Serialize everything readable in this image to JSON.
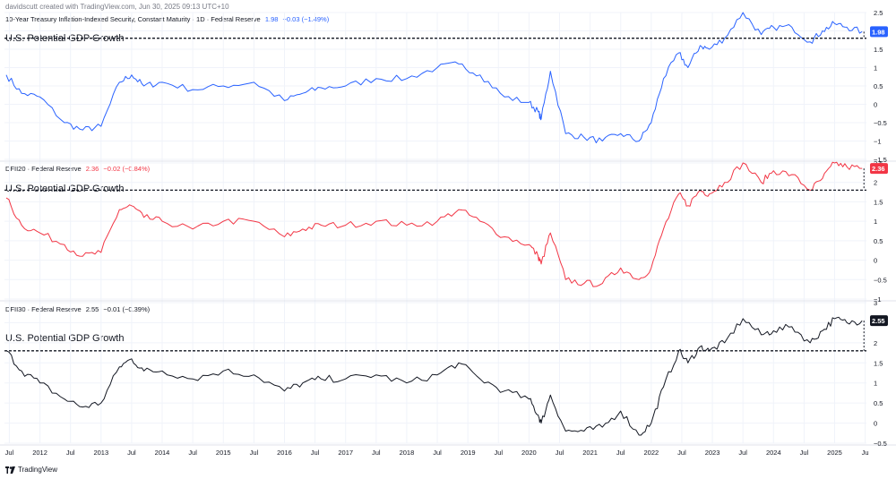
{
  "header": {
    "credit": "davidscutt created with TradingView.com, Jun 30, 2025 09:13 UTC+10"
  },
  "footer": {
    "brand": "TradingView"
  },
  "colors": {
    "blue": "#2962ff",
    "red": "#f23645",
    "black": "#131722",
    "grid": "#f0f3fa",
    "axis_text": "#131722"
  },
  "chart_data": [
    {
      "type": "line",
      "name": "10-Year Treasury Inflation-Indexed Security, Constant Maturity · 1D · Federal Reserve",
      "legend_value": "1.98",
      "legend_change": "−0.03 (−1.49%)",
      "last_value_label": "1.98",
      "color": "#2962ff",
      "annotation": "U.S. Potential GDP Growth",
      "reference_level": 1.8,
      "ylim": [
        -1.5,
        2.5
      ],
      "yticks": [
        "−1.5",
        "−1",
        "−0.5",
        "0",
        "0.5",
        "1",
        "1.5",
        "2",
        "2.5"
      ],
      "x": [
        2011.45,
        2011.7,
        2012.0,
        2012.4,
        2012.7,
        2013.0,
        2013.3,
        2013.5,
        2013.7,
        2014.0,
        2014.5,
        2015.0,
        2015.5,
        2016.0,
        2016.3,
        2016.6,
        2017.0,
        2017.5,
        2018.0,
        2018.5,
        2018.85,
        2019.2,
        2019.6,
        2020.0,
        2020.15,
        2020.2,
        2020.35,
        2020.6,
        2020.9,
        2021.2,
        2021.5,
        2021.8,
        2022.0,
        2022.2,
        2022.45,
        2022.6,
        2022.8,
        2022.95,
        2023.2,
        2023.5,
        2023.8,
        2024.0,
        2024.3,
        2024.6,
        2024.8,
        2025.0,
        2025.2,
        2025.45
      ],
      "y": [
        0.8,
        0.3,
        0.2,
        -0.5,
        -0.7,
        -0.6,
        0.6,
        0.8,
        0.5,
        0.6,
        0.4,
        0.5,
        0.6,
        0.1,
        0.3,
        0.45,
        0.5,
        0.7,
        0.7,
        1.0,
        1.1,
        0.8,
        0.2,
        0.05,
        -0.2,
        -0.4,
        0.9,
        -0.8,
        -0.9,
        -1.0,
        -0.8,
        -1.0,
        -0.5,
        0.7,
        1.4,
        1.0,
        1.6,
        1.5,
        1.8,
        2.5,
        1.9,
        2.1,
        2.1,
        1.7,
        2.0,
        2.2,
        2.1,
        1.98
      ]
    },
    {
      "type": "line",
      "name": "DFII20 · Federal Reserve",
      "legend_value": "2.36",
      "legend_change": "−0.02 (−0.84%)",
      "last_value_label": "2.36",
      "color": "#f23645",
      "annotation": "U.S. Potential GDP Growth",
      "reference_level": 1.8,
      "ylim": [
        -1,
        2.5
      ],
      "yticks": [
        "−1",
        "−0.5",
        "0",
        "0.5",
        "1",
        "1.5",
        "2",
        "2.5"
      ],
      "x": [
        2011.45,
        2011.7,
        2012.0,
        2012.4,
        2012.7,
        2013.0,
        2013.3,
        2013.5,
        2013.7,
        2014.0,
        2014.5,
        2015.0,
        2015.5,
        2016.0,
        2016.3,
        2016.6,
        2017.0,
        2017.5,
        2018.0,
        2018.5,
        2018.85,
        2019.2,
        2019.6,
        2020.0,
        2020.15,
        2020.2,
        2020.35,
        2020.6,
        2020.9,
        2021.2,
        2021.5,
        2021.8,
        2022.0,
        2022.2,
        2022.45,
        2022.6,
        2022.8,
        2022.95,
        2023.2,
        2023.5,
        2023.8,
        2024.0,
        2024.3,
        2024.6,
        2024.8,
        2025.0,
        2025.2,
        2025.45
      ],
      "y": [
        1.6,
        0.9,
        0.7,
        0.4,
        0.1,
        0.2,
        1.3,
        1.4,
        1.1,
        1.0,
        0.8,
        1.0,
        1.0,
        0.6,
        0.8,
        0.9,
        0.9,
        1.0,
        0.9,
        1.0,
        1.3,
        1.0,
        0.6,
        0.4,
        0.1,
        -0.1,
        0.7,
        -0.5,
        -0.6,
        -0.6,
        -0.2,
        -0.5,
        -0.2,
        0.8,
        1.7,
        1.4,
        1.8,
        1.7,
        2.0,
        2.5,
        2.0,
        2.3,
        2.2,
        1.8,
        2.1,
        2.5,
        2.4,
        2.36
      ]
    },
    {
      "type": "line",
      "name": "DFII30 · Federal Reserve",
      "legend_value": "2.55",
      "legend_change": "−0.01 (−0.39%)",
      "last_value_label": "2.55",
      "color": "#131722",
      "annotation": "U.S. Potential GDP Growth",
      "reference_level": 1.8,
      "ylim": [
        -0.5,
        3
      ],
      "yticks": [
        "−0.5",
        "0",
        "0.5",
        "1",
        "1.5",
        "2",
        "2.5",
        "3"
      ],
      "x": [
        2011.45,
        2011.7,
        2012.0,
        2012.4,
        2012.7,
        2013.0,
        2013.3,
        2013.5,
        2013.7,
        2014.0,
        2014.5,
        2015.0,
        2015.5,
        2016.0,
        2016.3,
        2016.6,
        2017.0,
        2017.5,
        2018.0,
        2018.5,
        2018.85,
        2019.2,
        2019.6,
        2020.0,
        2020.15,
        2020.2,
        2020.35,
        2020.6,
        2020.9,
        2021.2,
        2021.5,
        2021.8,
        2022.0,
        2022.2,
        2022.45,
        2022.6,
        2022.8,
        2022.95,
        2023.2,
        2023.5,
        2023.8,
        2024.0,
        2024.3,
        2024.6,
        2024.8,
        2025.0,
        2025.2,
        2025.45
      ],
      "y": [
        1.8,
        1.3,
        1.0,
        0.6,
        0.4,
        0.5,
        1.4,
        1.6,
        1.3,
        1.3,
        1.1,
        1.3,
        1.2,
        0.8,
        1.0,
        1.1,
        1.1,
        1.2,
        1.0,
        1.2,
        1.5,
        1.1,
        0.8,
        0.6,
        0.2,
        0.0,
        0.7,
        -0.2,
        -0.2,
        -0.1,
        0.3,
        -0.3,
        0.0,
        0.9,
        1.8,
        1.5,
        1.9,
        1.8,
        2.0,
        2.6,
        2.2,
        2.3,
        2.4,
        2.0,
        2.3,
        2.6,
        2.5,
        2.55
      ]
    }
  ],
  "x_axis": {
    "labels": [
      {
        "t": 2011.5,
        "label": "Jul"
      },
      {
        "t": 2012.0,
        "label": "2012"
      },
      {
        "t": 2012.5,
        "label": "Jul"
      },
      {
        "t": 2013.0,
        "label": "2013"
      },
      {
        "t": 2013.5,
        "label": "Jul"
      },
      {
        "t": 2014.0,
        "label": "2014"
      },
      {
        "t": 2014.5,
        "label": "Jul"
      },
      {
        "t": 2015.0,
        "label": "2015"
      },
      {
        "t": 2015.5,
        "label": "Jul"
      },
      {
        "t": 2016.0,
        "label": "2016"
      },
      {
        "t": 2016.5,
        "label": "Jul"
      },
      {
        "t": 2017.0,
        "label": "2017"
      },
      {
        "t": 2017.5,
        "label": "Jul"
      },
      {
        "t": 2018.0,
        "label": "2018"
      },
      {
        "t": 2018.5,
        "label": "Jul"
      },
      {
        "t": 2019.0,
        "label": "2019"
      },
      {
        "t": 2019.5,
        "label": "Jul"
      },
      {
        "t": 2020.0,
        "label": "2020"
      },
      {
        "t": 2020.5,
        "label": "Jul"
      },
      {
        "t": 2021.0,
        "label": "2021"
      },
      {
        "t": 2021.5,
        "label": "Jul"
      },
      {
        "t": 2022.0,
        "label": "2022"
      },
      {
        "t": 2022.5,
        "label": "Jul"
      },
      {
        "t": 2023.0,
        "label": "2023"
      },
      {
        "t": 2023.5,
        "label": "Jul"
      },
      {
        "t": 2024.0,
        "label": "2024"
      },
      {
        "t": 2024.5,
        "label": "Jul"
      },
      {
        "t": 2025.0,
        "label": "2025"
      },
      {
        "t": 2025.5,
        "label": "Ju"
      }
    ]
  }
}
